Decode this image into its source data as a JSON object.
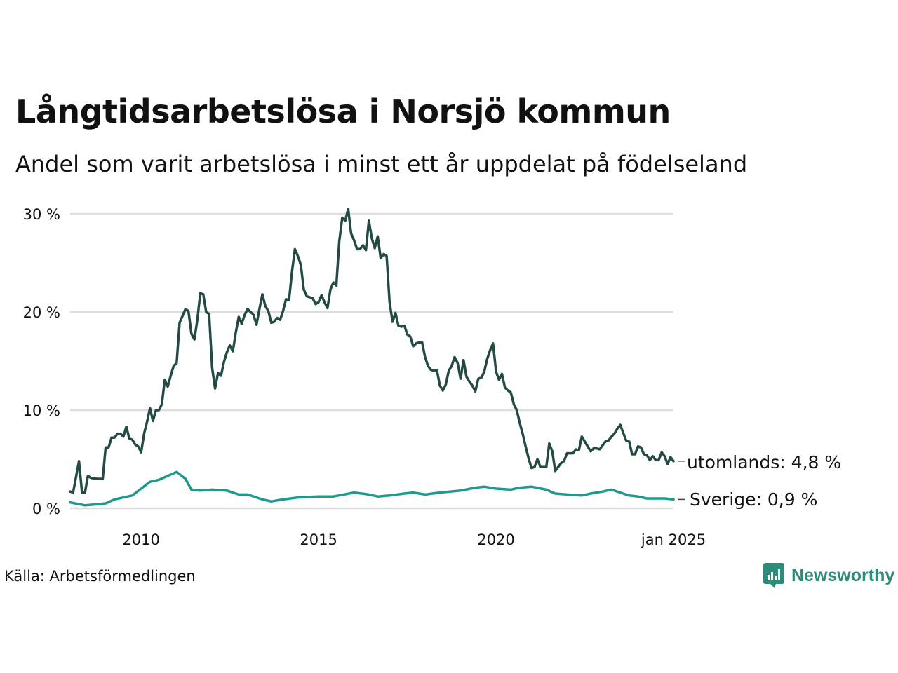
{
  "header": {
    "title": "Långtidsarbetslösa i Norsjö kommun",
    "subtitle": "Andel som varit arbetslösa i minst ett år uppdelat på födelseland"
  },
  "footer": {
    "source": "Källa: Arbetsförmedlingen",
    "brand": "Newsworthy"
  },
  "colors": {
    "utomlands": "#234a44",
    "sverige": "#1e9a8c",
    "grid": "#dddddd",
    "brand": "#2e8b7a"
  },
  "chart_data": {
    "type": "line",
    "title": "Långtidsarbetslösa i Norsjö kommun",
    "subtitle": "Andel som varit arbetslösa i minst ett år uppdelat på födelseland",
    "y_ticks": [
      "0 %",
      "10 %",
      "20 %",
      "30 %"
    ],
    "x_ticks": [
      "2010",
      "2015",
      "2020",
      "jan 2025"
    ],
    "ylim": [
      0,
      30
    ],
    "grid": "horizontal",
    "end_labels": [
      "utomlands: 4,8 %",
      "Sverige: 0,9 %"
    ],
    "series": [
      {
        "name": "utomlands",
        "color": "#234a44",
        "points": [
          [
            "2008-01",
            1.7
          ],
          [
            "2008-02",
            1.6
          ],
          [
            "2008-04",
            4.8
          ],
          [
            "2008-05",
            1.6
          ],
          [
            "2008-06",
            1.6
          ],
          [
            "2008-07",
            3.3
          ],
          [
            "2008-08",
            3.1
          ],
          [
            "2008-10",
            3.0
          ],
          [
            "2008-12",
            3.0
          ],
          [
            "2009-01",
            6.2
          ],
          [
            "2009-02",
            6.2
          ],
          [
            "2009-03",
            7.2
          ],
          [
            "2009-04",
            7.2
          ],
          [
            "2009-05",
            7.6
          ],
          [
            "2009-06",
            7.6
          ],
          [
            "2009-07",
            7.3
          ],
          [
            "2009-08",
            8.3
          ],
          [
            "2009-09",
            7.1
          ],
          [
            "2009-10",
            7.0
          ],
          [
            "2009-11",
            6.5
          ],
          [
            "2009-12",
            6.3
          ],
          [
            "2010-01",
            5.7
          ],
          [
            "2010-02",
            7.6
          ],
          [
            "2010-03",
            8.8
          ],
          [
            "2010-04",
            10.2
          ],
          [
            "2010-05",
            8.9
          ],
          [
            "2010-06",
            10.0
          ],
          [
            "2010-07",
            10.0
          ],
          [
            "2010-08",
            10.6
          ],
          [
            "2010-09",
            13.1
          ],
          [
            "2010-10",
            12.4
          ],
          [
            "2010-11",
            13.5
          ],
          [
            "2010-12",
            14.5
          ],
          [
            "2011-01",
            14.8
          ],
          [
            "2011-02",
            18.9
          ],
          [
            "2011-03",
            19.6
          ],
          [
            "2011-04",
            20.3
          ],
          [
            "2011-05",
            20.1
          ],
          [
            "2011-06",
            17.8
          ],
          [
            "2011-07",
            17.2
          ],
          [
            "2011-08",
            19.2
          ],
          [
            "2011-09",
            21.9
          ],
          [
            "2011-10",
            21.8
          ],
          [
            "2011-11",
            20.0
          ],
          [
            "2011-12",
            19.8
          ],
          [
            "2012-01",
            14.3
          ],
          [
            "2012-02",
            12.2
          ],
          [
            "2012-03",
            13.8
          ],
          [
            "2012-04",
            13.5
          ],
          [
            "2012-05",
            14.9
          ],
          [
            "2012-06",
            15.9
          ],
          [
            "2012-07",
            16.6
          ],
          [
            "2012-08",
            16.0
          ],
          [
            "2012-09",
            17.9
          ],
          [
            "2012-10",
            19.5
          ],
          [
            "2012-11",
            18.8
          ],
          [
            "2012-12",
            19.7
          ],
          [
            "2013-01",
            20.3
          ],
          [
            "2013-02",
            20.0
          ],
          [
            "2013-03",
            19.7
          ],
          [
            "2013-04",
            18.7
          ],
          [
            "2013-05",
            20.3
          ],
          [
            "2013-06",
            21.8
          ],
          [
            "2013-07",
            20.6
          ],
          [
            "2013-08",
            20.1
          ],
          [
            "2013-09",
            18.9
          ],
          [
            "2013-10",
            19.0
          ],
          [
            "2013-11",
            19.4
          ],
          [
            "2013-12",
            19.2
          ],
          [
            "2014-01",
            20.1
          ],
          [
            "2014-02",
            21.3
          ],
          [
            "2014-03",
            21.2
          ],
          [
            "2014-04",
            24.1
          ],
          [
            "2014-05",
            26.4
          ],
          [
            "2014-06",
            25.7
          ],
          [
            "2014-07",
            24.8
          ],
          [
            "2014-08",
            22.3
          ],
          [
            "2014-09",
            21.6
          ],
          [
            "2014-10",
            21.5
          ],
          [
            "2014-11",
            21.4
          ],
          [
            "2014-12",
            20.8
          ],
          [
            "2015-01",
            21.0
          ],
          [
            "2015-02",
            21.7
          ],
          [
            "2015-03",
            21.0
          ],
          [
            "2015-04",
            20.4
          ],
          [
            "2015-05",
            22.3
          ],
          [
            "2015-06",
            23.0
          ],
          [
            "2015-07",
            22.7
          ],
          [
            "2015-08",
            27.2
          ],
          [
            "2015-09",
            29.6
          ],
          [
            "2015-10",
            29.3
          ],
          [
            "2015-11",
            30.5
          ],
          [
            "2015-12",
            28.0
          ],
          [
            "2016-01",
            27.3
          ],
          [
            "2016-02",
            26.4
          ],
          [
            "2016-03",
            26.4
          ],
          [
            "2016-04",
            26.8
          ],
          [
            "2016-05",
            26.3
          ],
          [
            "2016-06",
            29.3
          ],
          [
            "2016-07",
            27.5
          ],
          [
            "2016-08",
            26.5
          ],
          [
            "2016-09",
            27.7
          ],
          [
            "2016-10",
            25.5
          ],
          [
            "2016-11",
            25.9
          ],
          [
            "2016-12",
            25.7
          ],
          [
            "2017-01",
            21.0
          ],
          [
            "2017-02",
            19.0
          ],
          [
            "2017-03",
            19.9
          ],
          [
            "2017-04",
            18.6
          ],
          [
            "2017-05",
            18.5
          ],
          [
            "2017-06",
            18.6
          ],
          [
            "2017-07",
            17.7
          ],
          [
            "2017-08",
            17.5
          ],
          [
            "2017-09",
            16.5
          ],
          [
            "2017-10",
            16.8
          ],
          [
            "2017-11",
            16.9
          ],
          [
            "2017-12",
            16.9
          ],
          [
            "2018-01",
            15.4
          ],
          [
            "2018-02",
            14.5
          ],
          [
            "2018-03",
            14.1
          ],
          [
            "2018-04",
            14.0
          ],
          [
            "2018-05",
            14.1
          ],
          [
            "2018-06",
            12.5
          ],
          [
            "2018-07",
            12.0
          ],
          [
            "2018-08",
            12.6
          ],
          [
            "2018-09",
            14.0
          ],
          [
            "2018-10",
            14.5
          ],
          [
            "2018-11",
            15.4
          ],
          [
            "2018-12",
            14.8
          ],
          [
            "2019-01",
            13.2
          ],
          [
            "2019-02",
            15.1
          ],
          [
            "2019-03",
            13.4
          ],
          [
            "2019-04",
            12.9
          ],
          [
            "2019-05",
            12.5
          ],
          [
            "2019-06",
            11.9
          ],
          [
            "2019-07",
            13.2
          ],
          [
            "2019-08",
            13.3
          ],
          [
            "2019-09",
            13.9
          ],
          [
            "2019-10",
            15.2
          ],
          [
            "2019-11",
            16.1
          ],
          [
            "2019-12",
            16.8
          ],
          [
            "2020-01",
            13.9
          ],
          [
            "2020-02",
            13.1
          ],
          [
            "2020-03",
            13.7
          ],
          [
            "2020-04",
            12.3
          ],
          [
            "2020-05",
            12.0
          ],
          [
            "2020-06",
            11.8
          ],
          [
            "2020-07",
            10.6
          ],
          [
            "2020-08",
            10.0
          ],
          [
            "2020-09",
            8.7
          ],
          [
            "2020-10",
            7.6
          ],
          [
            "2020-11",
            6.3
          ],
          [
            "2020-12",
            5.1
          ],
          [
            "2021-01",
            4.1
          ],
          [
            "2021-02",
            4.2
          ],
          [
            "2021-03",
            5.0
          ],
          [
            "2021-04",
            4.2
          ],
          [
            "2021-05",
            4.2
          ],
          [
            "2021-06",
            4.2
          ],
          [
            "2021-07",
            6.6
          ],
          [
            "2021-08",
            5.8
          ],
          [
            "2021-09",
            3.8
          ],
          [
            "2021-10",
            4.2
          ],
          [
            "2021-11",
            4.6
          ],
          [
            "2021-12",
            4.8
          ],
          [
            "2022-01",
            5.6
          ],
          [
            "2022-02",
            5.6
          ],
          [
            "2022-03",
            5.6
          ],
          [
            "2022-04",
            6.0
          ],
          [
            "2022-05",
            5.9
          ],
          [
            "2022-06",
            7.3
          ],
          [
            "2022-07",
            6.8
          ],
          [
            "2022-08",
            6.3
          ],
          [
            "2022-09",
            5.8
          ],
          [
            "2022-10",
            6.1
          ],
          [
            "2022-11",
            6.1
          ],
          [
            "2022-12",
            6.0
          ],
          [
            "2023-01",
            6.4
          ],
          [
            "2023-02",
            6.8
          ],
          [
            "2023-03",
            6.9
          ],
          [
            "2023-04",
            7.3
          ],
          [
            "2023-05",
            7.6
          ],
          [
            "2023-06",
            8.1
          ],
          [
            "2023-07",
            8.5
          ],
          [
            "2023-08",
            7.7
          ],
          [
            "2023-09",
            6.9
          ],
          [
            "2023-10",
            6.8
          ],
          [
            "2023-11",
            5.5
          ],
          [
            "2023-12",
            5.5
          ],
          [
            "2024-01",
            6.3
          ],
          [
            "2024-02",
            6.2
          ],
          [
            "2024-03",
            5.5
          ],
          [
            "2024-04",
            5.4
          ],
          [
            "2024-05",
            4.9
          ],
          [
            "2024-06",
            5.3
          ],
          [
            "2024-07",
            4.9
          ],
          [
            "2024-08",
            4.9
          ],
          [
            "2024-09",
            5.7
          ],
          [
            "2024-10",
            5.3
          ],
          [
            "2024-11",
            4.5
          ],
          [
            "2024-12",
            5.2
          ],
          [
            "2025-01",
            4.8
          ]
        ]
      },
      {
        "name": "Sverige",
        "color": "#1e9a8c",
        "points": [
          [
            "2008-01",
            0.6
          ],
          [
            "2008-06",
            0.3
          ],
          [
            "2008-10",
            0.4
          ],
          [
            "2009-01",
            0.5
          ],
          [
            "2009-04",
            0.9
          ],
          [
            "2009-07",
            1.1
          ],
          [
            "2009-10",
            1.3
          ],
          [
            "2010-01",
            2.0
          ],
          [
            "2010-04",
            2.7
          ],
          [
            "2010-07",
            2.9
          ],
          [
            "2010-10",
            3.3
          ],
          [
            "2011-01",
            3.7
          ],
          [
            "2011-04",
            3.0
          ],
          [
            "2011-06",
            1.9
          ],
          [
            "2011-09",
            1.8
          ],
          [
            "2012-01",
            1.9
          ],
          [
            "2012-06",
            1.8
          ],
          [
            "2012-10",
            1.4
          ],
          [
            "2013-01",
            1.4
          ],
          [
            "2013-06",
            0.9
          ],
          [
            "2013-09",
            0.7
          ],
          [
            "2014-01",
            0.9
          ],
          [
            "2014-06",
            1.1
          ],
          [
            "2015-01",
            1.2
          ],
          [
            "2015-06",
            1.2
          ],
          [
            "2016-01",
            1.6
          ],
          [
            "2016-06",
            1.4
          ],
          [
            "2016-09",
            1.2
          ],
          [
            "2017-01",
            1.3
          ],
          [
            "2017-06",
            1.5
          ],
          [
            "2017-09",
            1.6
          ],
          [
            "2018-01",
            1.4
          ],
          [
            "2018-06",
            1.6
          ],
          [
            "2019-01",
            1.8
          ],
          [
            "2019-06",
            2.1
          ],
          [
            "2019-09",
            2.2
          ],
          [
            "2020-01",
            2.0
          ],
          [
            "2020-06",
            1.9
          ],
          [
            "2020-09",
            2.1
          ],
          [
            "2021-01",
            2.2
          ],
          [
            "2021-06",
            1.9
          ],
          [
            "2021-09",
            1.5
          ],
          [
            "2022-01",
            1.4
          ],
          [
            "2022-06",
            1.3
          ],
          [
            "2022-09",
            1.5
          ],
          [
            "2023-01",
            1.7
          ],
          [
            "2023-04",
            1.9
          ],
          [
            "2023-07",
            1.6
          ],
          [
            "2023-10",
            1.3
          ],
          [
            "2024-01",
            1.2
          ],
          [
            "2024-04",
            1.0
          ],
          [
            "2024-07",
            1.0
          ],
          [
            "2024-10",
            1.0
          ],
          [
            "2025-01",
            0.9
          ]
        ]
      }
    ]
  }
}
